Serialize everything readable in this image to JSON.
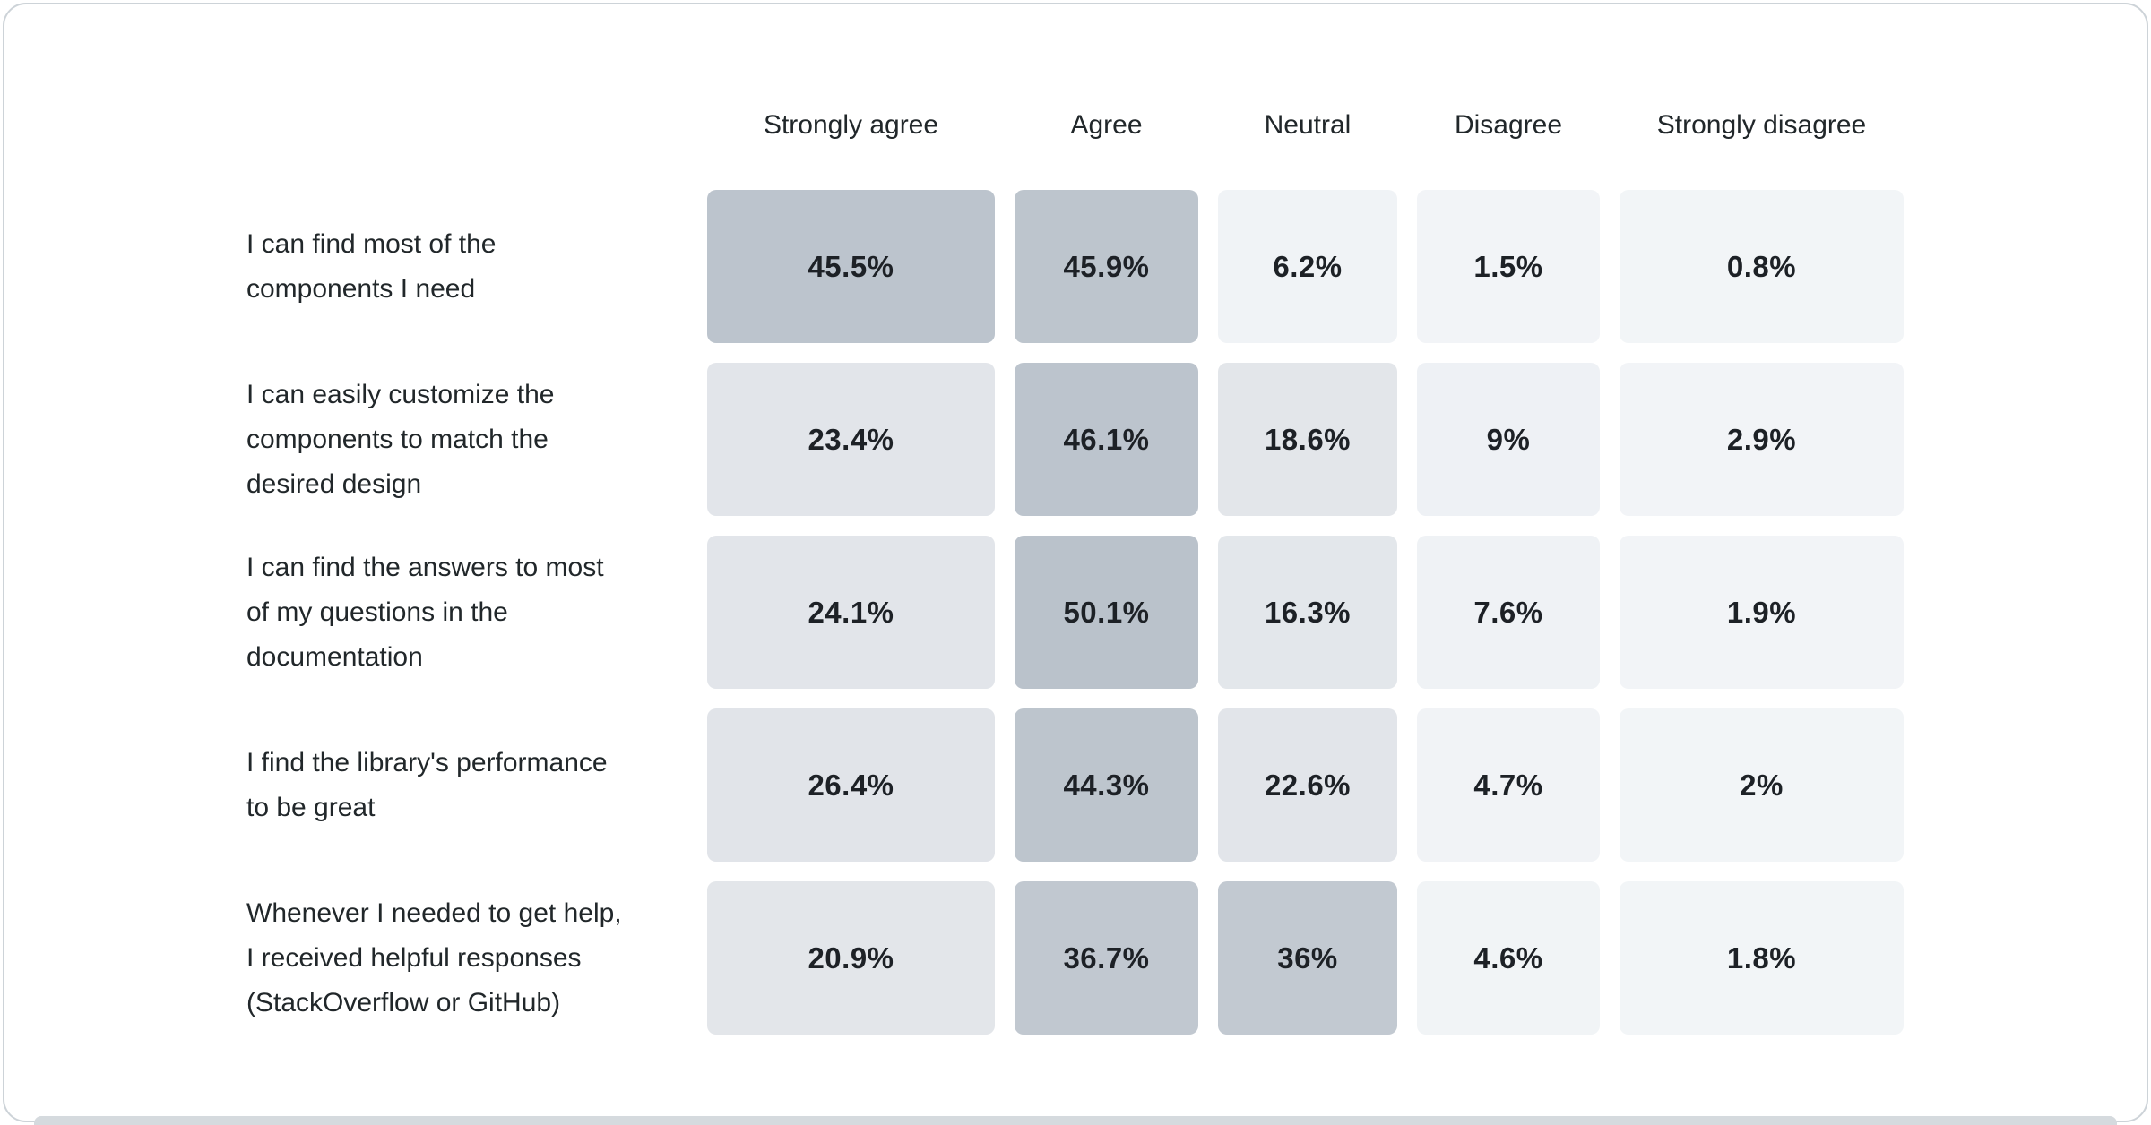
{
  "chart_data": {
    "type": "heatmap",
    "title": "",
    "columns": [
      "Strongly agree",
      "Agree",
      "Neutral",
      "Disagree",
      "Strongly disagree"
    ],
    "rows": [
      {
        "label": "I can find most of the\ncomponents I need",
        "values": [
          45.5,
          45.9,
          6.2,
          1.5,
          0.8
        ],
        "display": [
          "45.5%",
          "45.9%",
          "6.2%",
          "1.5%",
          "0.8%"
        ],
        "cell_colors": [
          "#bcc4cd",
          "#bdc5cd",
          "#f0f3f6",
          "#f2f4f7",
          "#f2f5f7"
        ]
      },
      {
        "label": "I can easily customize the\ncomponents to match the\ndesired design",
        "values": [
          23.4,
          46.1,
          18.6,
          9,
          2.9
        ],
        "display": [
          "23.4%",
          "46.1%",
          "18.6%",
          "9%",
          "2.9%"
        ],
        "cell_colors": [
          "#e2e5ea",
          "#bcc4cd",
          "#e3e6ea",
          "#eef1f5",
          "#f2f4f7"
        ]
      },
      {
        "label": "I can find the answers to most\nof my questions in the\ndocumentation",
        "values": [
          24.1,
          50.1,
          16.3,
          7.6,
          1.9
        ],
        "display": [
          "24.1%",
          "50.1%",
          "16.3%",
          "7.6%",
          "1.9%"
        ],
        "cell_colors": [
          "#e2e5ea",
          "#bac2cb",
          "#e3e7eb",
          "#eff2f5",
          "#f2f4f7"
        ]
      },
      {
        "label": "I find the library's performance\nto be great",
        "values": [
          26.4,
          44.3,
          22.6,
          4.7,
          2
        ],
        "display": [
          "26.4%",
          "44.3%",
          "22.6%",
          "4.7%",
          "2%"
        ],
        "cell_colors": [
          "#e1e4e9",
          "#bdc5cd",
          "#e2e5ea",
          "#f1f3f6",
          "#f2f5f7"
        ]
      },
      {
        "label": "Whenever I needed to get help,\nI received helpful responses\n(StackOverflow or GitHub)",
        "values": [
          20.9,
          36.7,
          36,
          4.6,
          1.8
        ],
        "display": [
          "20.9%",
          "36.7%",
          "36%",
          "4.6%",
          "1.8%"
        ],
        "cell_colors": [
          "#e3e6ea",
          "#c1c8d0",
          "#c2c9d1",
          "#f1f4f6",
          "#f2f5f7"
        ]
      }
    ],
    "layout": {
      "legend": "none",
      "grid": "off",
      "value_format": "percent",
      "color_scale": {
        "min_value_color": "#f3f5f8",
        "max_value_color": "#bac2cb",
        "domain_percent": [
          0,
          50.1
        ]
      }
    },
    "colors": {
      "header_text": "#21272a",
      "label_text": "#21272a",
      "value_text": "#1d2126",
      "card_border": "#cdd3d8",
      "bottom_strip": "#d5dade",
      "background": "#ffffff"
    }
  }
}
